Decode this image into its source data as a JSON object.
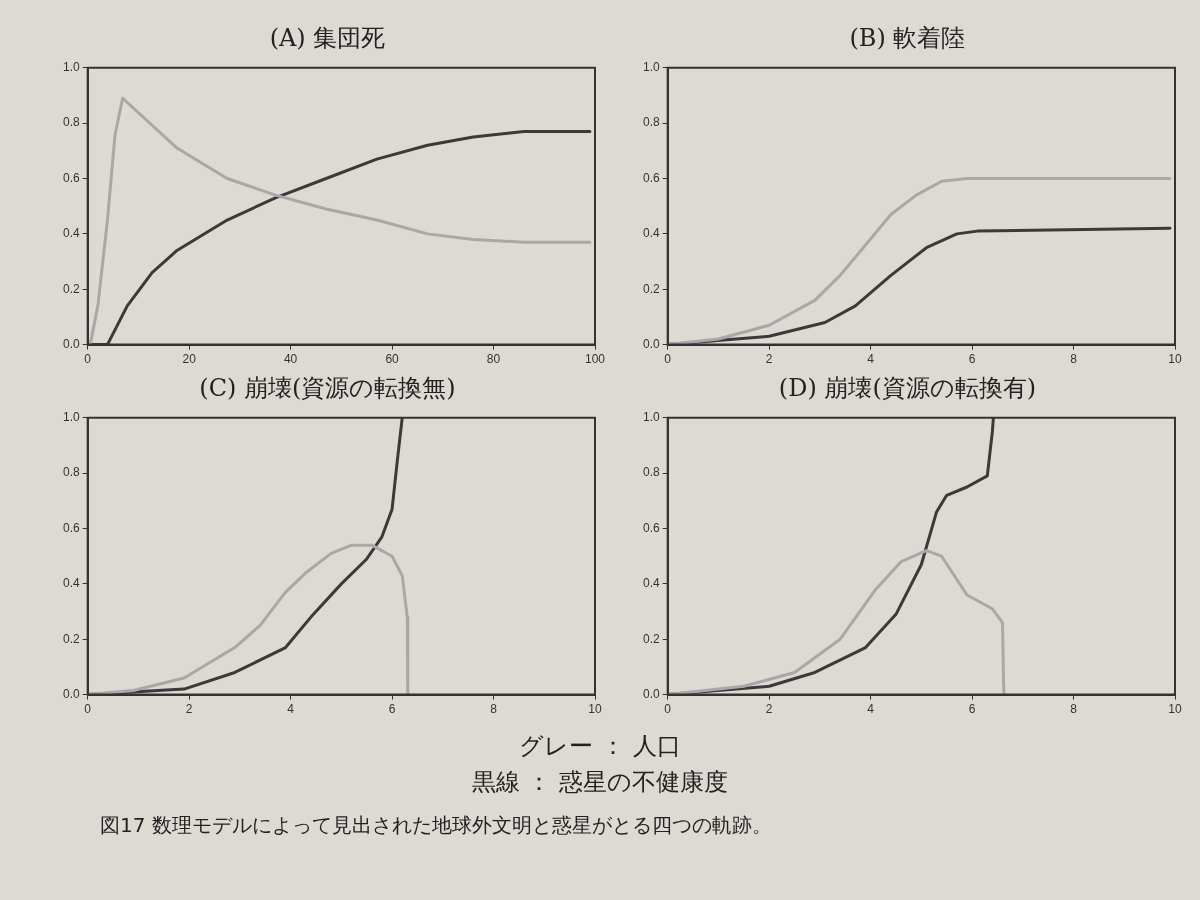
{
  "chart_data": [
    {
      "type": "line",
      "title": "(A) 集団死",
      "xlim": [
        0,
        100
      ],
      "xticks": [
        0,
        20,
        40,
        60,
        80,
        100
      ],
      "ylim": [
        0,
        1
      ],
      "yticks": [
        {
          "value": 0,
          "label": "0.0"
        },
        {
          "value": 0.2,
          "label": "0.2"
        },
        {
          "value": 0.4,
          "label": "0.4"
        },
        {
          "value": 0.6,
          "label": "0.6"
        },
        {
          "value": 0.8,
          "label": "0.8"
        },
        {
          "value": 1,
          "label": "1.0"
        }
      ],
      "grid": false,
      "legend": false,
      "marker": "none",
      "line_style": "solid",
      "series": [
        {
          "color": "#a8a8a8",
          "x": [
            0.5,
            2,
            3.9,
            5.4,
            6.9,
            17.6,
            27.5,
            37,
            47,
            57,
            67,
            76,
            86,
            99
          ],
          "values": [
            0,
            0.14,
            0.45,
            0.76,
            0.89,
            0.71,
            0.6,
            0.54,
            0.49,
            0.45,
            0.4,
            0.38,
            0.37,
            0.37
          ]
        },
        {
          "color": "#3a3a3a",
          "x": [
            0.5,
            3.9,
            7.8,
            12.7,
            17.6,
            27.5,
            37,
            47,
            57,
            67,
            76,
            86,
            99
          ],
          "values": [
            0,
            0,
            0.14,
            0.26,
            0.34,
            0.45,
            0.53,
            0.6,
            0.67,
            0.72,
            0.75,
            0.77,
            0.77
          ]
        }
      ]
    },
    {
      "type": "line",
      "title": "(B) 軟着陸",
      "xlim": [
        0,
        10
      ],
      "xticks": [
        0,
        2,
        4,
        6,
        8,
        10
      ],
      "ylim": [
        0,
        1
      ],
      "yticks": [
        {
          "value": 0,
          "label": "0.0"
        },
        {
          "value": 0.2,
          "label": "0.2"
        },
        {
          "value": 0.4,
          "label": "0.4"
        },
        {
          "value": 0.6,
          "label": "0.6"
        },
        {
          "value": 0.8,
          "label": "0.8"
        },
        {
          "value": 1,
          "label": "1.0"
        }
      ],
      "grid": false,
      "legend": false,
      "marker": "none",
      "line_style": "solid",
      "series": [
        {
          "color": "#a8a8a8",
          "x": [
            0,
            1,
            2,
            2.9,
            3.4,
            3.9,
            4.4,
            4.9,
            5.4,
            5.9,
            9.9
          ],
          "values": [
            0,
            0.02,
            0.07,
            0.16,
            0.25,
            0.36,
            0.47,
            0.54,
            0.59,
            0.6,
            0.6
          ]
        },
        {
          "color": "#3a3a3a",
          "x": [
            0,
            2,
            3.1,
            3.7,
            4.4,
            5.1,
            5.7,
            6.1,
            9.9
          ],
          "values": [
            0,
            0.03,
            0.08,
            0.14,
            0.25,
            0.35,
            0.4,
            0.41,
            0.42
          ]
        }
      ]
    },
    {
      "type": "line",
      "title": "(C) 崩壊(資源の転換無)",
      "xlim": [
        0,
        10
      ],
      "xticks": [
        0,
        2,
        4,
        6,
        8,
        10
      ],
      "ylim": [
        0,
        1
      ],
      "yticks": [
        {
          "value": 0,
          "label": "0.0"
        },
        {
          "value": 0.2,
          "label": "0.2"
        },
        {
          "value": 0.4,
          "label": "0.4"
        },
        {
          "value": 0.6,
          "label": "0.6"
        },
        {
          "value": 0.8,
          "label": "0.8"
        },
        {
          "value": 1,
          "label": "1.0"
        }
      ],
      "grid": false,
      "legend": false,
      "marker": "none",
      "line_style": "solid",
      "series": [
        {
          "color": "#a8a8a8",
          "x": [
            0,
            0.9,
            1.9,
            2.9,
            3.4,
            3.9,
            4.3,
            4.8,
            5.2,
            5.6,
            6,
            6.2,
            6.3,
            6.31
          ],
          "values": [
            0,
            0.015,
            0.06,
            0.17,
            0.25,
            0.37,
            0.44,
            0.51,
            0.54,
            0.54,
            0.5,
            0.43,
            0.28,
            0
          ]
        },
        {
          "color": "#3a3a3a",
          "x": [
            0,
            1.9,
            2.9,
            3.9,
            4.4,
            5,
            5.5,
            5.8,
            6,
            6.1,
            6.2
          ],
          "values": [
            0,
            0.02,
            0.08,
            0.17,
            0.28,
            0.4,
            0.49,
            0.57,
            0.67,
            0.84,
            1
          ]
        }
      ]
    },
    {
      "type": "line",
      "title": "(D) 崩壊(資源の転換有)",
      "xlim": [
        0,
        10
      ],
      "xticks": [
        0,
        2,
        4,
        6,
        8,
        10
      ],
      "ylim": [
        0,
        1
      ],
      "yticks": [
        {
          "value": 0,
          "label": "0.0"
        },
        {
          "value": 0.2,
          "label": "0.2"
        },
        {
          "value": 0.4,
          "label": "0.4"
        },
        {
          "value": 0.6,
          "label": "0.6"
        },
        {
          "value": 0.8,
          "label": "0.8"
        },
        {
          "value": 1,
          "label": "1.0"
        }
      ],
      "grid": false,
      "legend": false,
      "marker": "none",
      "line_style": "solid",
      "series": [
        {
          "color": "#a8a8a8",
          "x": [
            0,
            1.5,
            2.5,
            3.4,
            4.1,
            4.6,
            5.1,
            5.4,
            5.9,
            6.4,
            6.6,
            6.62,
            6.63
          ],
          "values": [
            0,
            0.03,
            0.08,
            0.2,
            0.38,
            0.48,
            0.52,
            0.5,
            0.36,
            0.31,
            0.26,
            0.05,
            0
          ]
        },
        {
          "color": "#3a3a3a",
          "x": [
            0,
            2,
            2.9,
            3.9,
            4.5,
            5,
            5.3,
            5.5,
            5.9,
            6.3,
            6.4,
            6.42
          ],
          "values": [
            0,
            0.03,
            0.08,
            0.17,
            0.29,
            0.47,
            0.66,
            0.72,
            0.75,
            0.79,
            0.95,
            1
          ]
        }
      ]
    },
    {
      "type": "other",
      "annotations": [
        "グレー ： 人口",
        "黒線 ： 惑星の不健康度",
        "図17 数理モデルによって見出された地球外文明と惑星がとる四つの軌跡。"
      ]
    }
  ]
}
